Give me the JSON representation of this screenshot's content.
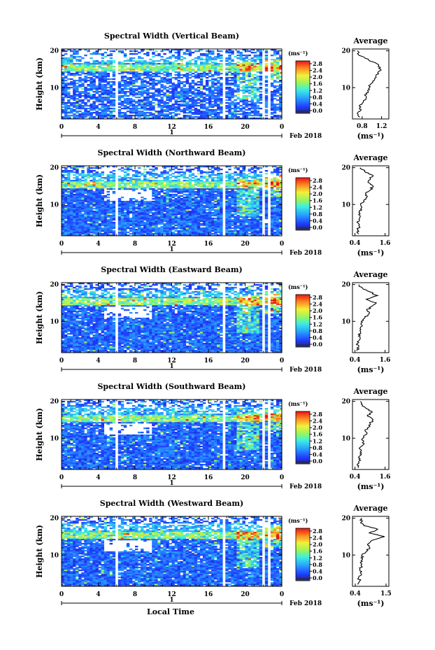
{
  "figure": {
    "xlabel": "Local Time",
    "date_label": "Feb 2018",
    "day_label": "1",
    "ylabel": "Height (km)",
    "colorbar_unit": "(ms⁻¹)",
    "colorbar_ticks": [
      "2.8",
      "2.4",
      "2.0",
      "1.6",
      "1.2",
      "0.8",
      "0.4",
      "0.0"
    ],
    "average_title": "Average",
    "average_xlabel": "(ms⁻¹)"
  },
  "chart_data": [
    {
      "type": "heatmap",
      "title": "Spectral Width (Vertical Beam)",
      "xlabel": "Local Time",
      "ylabel": "Height (km)",
      "x_ticks": [
        "0",
        "4",
        "8",
        "12",
        "16",
        "20",
        "0"
      ],
      "y_ticks": [
        "20",
        "10"
      ],
      "xlim": [
        0,
        24
      ],
      "ylim": [
        1.5,
        20.5
      ],
      "colorbar": {
        "label": "(ms⁻¹)",
        "min": 0.0,
        "max": 3.0,
        "ticks": [
          "2.8",
          "2.4",
          "2.0",
          "1.6",
          "1.2",
          "0.8",
          "0.4",
          "0.0"
        ]
      },
      "data_gaps_hours": [
        [
          5.7,
          6.0
        ],
        [
          17.6,
          17.9
        ],
        [
          21.7,
          22.1
        ],
        [
          22.6,
          22.9
        ]
      ],
      "average_profile": {
        "title": "Average",
        "xlabel": "(ms⁻¹)",
        "x_ticks": [
          "0.8",
          "1.2"
        ],
        "xlim": [
          0.6,
          1.35
        ],
        "y_ticks": [
          "20",
          "10"
        ],
        "ylim": [
          1.5,
          20.5
        ],
        "height_km": [
          2,
          3,
          4,
          5,
          6,
          7,
          8,
          9,
          10,
          11,
          12,
          13,
          14,
          15,
          16,
          17,
          18,
          19,
          20
        ],
        "width_ms": [
          0.75,
          0.7,
          0.78,
          0.74,
          0.82,
          0.88,
          0.85,
          0.92,
          0.95,
          0.98,
          1.05,
          1.08,
          1.12,
          1.18,
          1.14,
          1.02,
          0.86,
          0.72,
          0.7
        ]
      }
    },
    {
      "type": "heatmap",
      "title": "Spectral Width (Northward Beam)",
      "xlabel": "Local Time",
      "ylabel": "Height (km)",
      "x_ticks": [
        "0",
        "4",
        "8",
        "12",
        "16",
        "20",
        "0"
      ],
      "y_ticks": [
        "20",
        "10"
      ],
      "xlim": [
        0,
        24
      ],
      "ylim": [
        1.5,
        20.5
      ],
      "colorbar": {
        "label": "(ms⁻¹)",
        "min": 0.0,
        "max": 3.0,
        "ticks": [
          "2.8",
          "2.4",
          "2.0",
          "1.6",
          "1.2",
          "0.8",
          "0.4",
          "0.0"
        ]
      },
      "data_gaps_hours": [
        [
          5.7,
          6.0
        ],
        [
          17.6,
          17.9
        ],
        [
          21.7,
          22.1
        ],
        [
          22.6,
          22.9
        ]
      ],
      "average_profile": {
        "title": "Average",
        "xlabel": "(ms⁻¹)",
        "x_ticks": [
          "0.4",
          "1.6"
        ],
        "xlim": [
          0.3,
          1.75
        ],
        "y_ticks": [
          "20",
          "10"
        ],
        "ylim": [
          1.5,
          20.5
        ],
        "height_km": [
          2,
          3,
          4,
          5,
          6,
          7,
          8,
          9,
          10,
          11,
          12,
          13,
          14,
          15,
          16,
          17,
          18,
          19,
          20
        ],
        "width_ms": [
          0.55,
          0.5,
          0.58,
          0.52,
          0.56,
          0.6,
          0.58,
          0.66,
          0.62,
          0.75,
          0.88,
          0.82,
          1.02,
          1.12,
          0.92,
          1.02,
          1.1,
          0.78,
          0.62
        ]
      }
    },
    {
      "type": "heatmap",
      "title": "Spectral Width (Eastward Beam)",
      "xlabel": "Local Time",
      "ylabel": "Height (km)",
      "x_ticks": [
        "0",
        "4",
        "8",
        "12",
        "16",
        "20",
        "0"
      ],
      "y_ticks": [
        "20",
        "10"
      ],
      "xlim": [
        0,
        24
      ],
      "ylim": [
        1.5,
        20.5
      ],
      "colorbar": {
        "label": "(ms⁻¹)",
        "min": 0.0,
        "max": 3.0,
        "ticks": [
          "2.8",
          "2.4",
          "2.0",
          "1.6",
          "1.2",
          "0.8",
          "0.4",
          "0.0"
        ]
      },
      "data_gaps_hours": [
        [
          5.7,
          6.0
        ],
        [
          17.6,
          17.9
        ],
        [
          21.7,
          22.1
        ],
        [
          22.6,
          22.9
        ]
      ],
      "average_profile": {
        "title": "Average",
        "xlabel": "(ms⁻¹)",
        "x_ticks": [
          "0.4",
          "1.6"
        ],
        "xlim": [
          0.3,
          1.75
        ],
        "y_ticks": [
          "20",
          "10"
        ],
        "ylim": [
          1.5,
          20.5
        ],
        "height_km": [
          2,
          3,
          4,
          5,
          6,
          7,
          8,
          9,
          10,
          11,
          12,
          13,
          14,
          15,
          16,
          17,
          18,
          19,
          20
        ],
        "width_ms": [
          0.48,
          0.55,
          0.5,
          0.58,
          0.54,
          0.62,
          0.6,
          0.68,
          0.65,
          0.8,
          0.95,
          0.88,
          1.05,
          1.25,
          0.85,
          1.3,
          1.0,
          0.7,
          0.55
        ]
      }
    },
    {
      "type": "heatmap",
      "title": "Spectral Width (Southward Beam)",
      "xlabel": "Local Time",
      "ylabel": "Height (km)",
      "x_ticks": [
        "0",
        "4",
        "8",
        "12",
        "16",
        "20",
        "0"
      ],
      "y_ticks": [
        "20",
        "10"
      ],
      "xlim": [
        0,
        24
      ],
      "ylim": [
        1.5,
        20.5
      ],
      "colorbar": {
        "label": "(ms⁻¹)",
        "min": 0.0,
        "max": 3.0,
        "ticks": [
          "2.8",
          "2.4",
          "2.0",
          "1.6",
          "1.2",
          "0.8",
          "0.4",
          "0.0"
        ]
      },
      "data_gaps_hours": [
        [
          5.7,
          6.0
        ],
        [
          17.6,
          17.9
        ],
        [
          21.7,
          22.1
        ],
        [
          22.6,
          22.9
        ]
      ],
      "average_profile": {
        "title": "Average",
        "xlabel": "(ms⁻¹)",
        "x_ticks": [
          "0.4",
          "1.6"
        ],
        "xlim": [
          0.3,
          1.75
        ],
        "y_ticks": [
          "20",
          "10"
        ],
        "ylim": [
          1.5,
          20.5
        ],
        "height_km": [
          2,
          3,
          4,
          5,
          6,
          7,
          8,
          9,
          10,
          11,
          12,
          13,
          14,
          15,
          16,
          17,
          18,
          19,
          20
        ],
        "width_ms": [
          0.55,
          0.5,
          0.62,
          0.56,
          0.66,
          0.6,
          0.7,
          0.74,
          0.72,
          0.85,
          0.8,
          0.95,
          1.0,
          1.12,
          0.9,
          1.08,
          0.86,
          0.7,
          0.62
        ]
      }
    },
    {
      "type": "heatmap",
      "title": "Spectral Width (Westward Beam)",
      "xlabel": "Local Time",
      "ylabel": "Height (km)",
      "x_ticks": [
        "0",
        "4",
        "8",
        "12",
        "16",
        "20",
        "0"
      ],
      "y_ticks": [
        "20",
        "10"
      ],
      "xlim": [
        0,
        24
      ],
      "ylim": [
        1.5,
        20.5
      ],
      "colorbar": {
        "label": "(ms⁻¹)",
        "min": 0.0,
        "max": 3.0,
        "ticks": [
          "2.8",
          "2.4",
          "2.0",
          "1.6",
          "1.2",
          "0.8",
          "0.4",
          "0.0"
        ]
      },
      "data_gaps_hours": [
        [
          5.7,
          6.0
        ],
        [
          17.6,
          17.9
        ],
        [
          21.7,
          22.1
        ],
        [
          22.6,
          22.9
        ]
      ],
      "average_profile": {
        "title": "Average",
        "xlabel": "(ms⁻¹)",
        "x_ticks": [
          "0.4",
          "1.5"
        ],
        "xlim": [
          0.3,
          1.6
        ],
        "y_ticks": [
          "20",
          "10"
        ],
        "ylim": [
          1.5,
          20.5
        ],
        "height_km": [
          2,
          3,
          4,
          5,
          6,
          7,
          8,
          9,
          10,
          11,
          12,
          13,
          14,
          15,
          16,
          17,
          18,
          19,
          20
        ],
        "width_ms": [
          0.5,
          0.56,
          0.52,
          0.6,
          0.56,
          0.62,
          0.58,
          0.66,
          0.64,
          0.8,
          0.92,
          0.85,
          1.0,
          1.45,
          0.9,
          1.2,
          0.7,
          0.62,
          0.6
        ]
      }
    }
  ]
}
